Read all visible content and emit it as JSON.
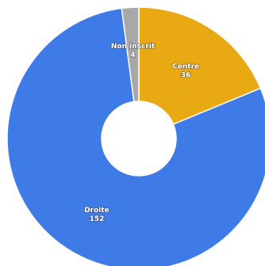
{
  "chart_data": {
    "type": "pie",
    "donut": true,
    "series": [
      {
        "label": "Centre",
        "value": 36,
        "value_label": "36",
        "color": "#E8A912"
      },
      {
        "label": "Droite",
        "value": 152,
        "value_label": "152",
        "color": "#3E7BE6"
      },
      {
        "label": "Non inscrit",
        "value": 4,
        "value_label": "4",
        "color": "#A8A8A8"
      }
    ],
    "start_angle_deg": 0,
    "direction": "clockwise",
    "legend": "none",
    "data_labels": "inside"
  }
}
